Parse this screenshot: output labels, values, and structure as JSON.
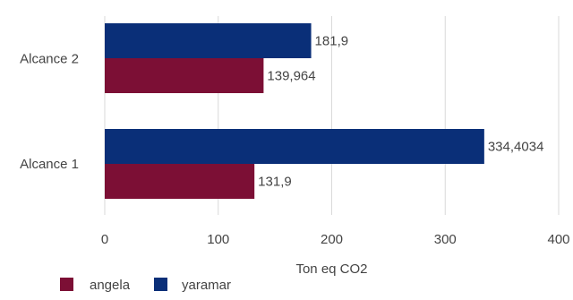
{
  "chart_data": {
    "type": "bar",
    "orientation": "horizontal",
    "categories": [
      "Alcance 2",
      "Alcance 1"
    ],
    "series": [
      {
        "name": "yaramar",
        "color": "#0a2f78",
        "values": [
          181.9,
          334.4034
        ],
        "labels": [
          "181,9",
          "334,4034"
        ]
      },
      {
        "name": "angela",
        "color": "#7c0f35",
        "values": [
          139.964,
          131.9
        ],
        "labels": [
          "139,964",
          "131,9"
        ]
      }
    ],
    "xlabel": "Ton eq CO2",
    "xlim": [
      0,
      400
    ],
    "xticks": [
      0,
      100,
      200,
      300,
      400
    ],
    "xtick_labels": [
      "0",
      "100",
      "200",
      "300",
      "400"
    ],
    "grid": "vertical",
    "legend": {
      "position": "bottom-left",
      "order": [
        "angela",
        "yaramar"
      ]
    }
  }
}
